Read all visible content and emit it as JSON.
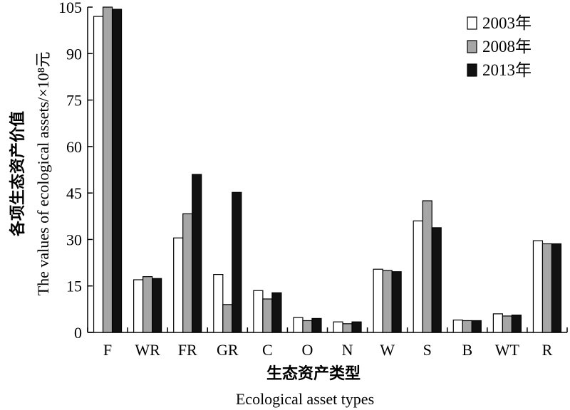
{
  "chart_data": {
    "type": "bar",
    "categories": [
      "F",
      "WR",
      "FR",
      "GR",
      "C",
      "O",
      "N",
      "W",
      "S",
      "B",
      "WT",
      "R"
    ],
    "series": [
      {
        "name": "2003年",
        "color": "#ffffff",
        "values": [
          102,
          17,
          30.5,
          18.7,
          13.5,
          4.8,
          3.4,
          20.4,
          36,
          4,
          6,
          29.6
        ]
      },
      {
        "name": "2008年",
        "color": "#a6a6a6",
        "values": [
          105,
          18,
          38.3,
          9,
          10.8,
          3.8,
          2.8,
          20,
          42.5,
          3.8,
          5.3,
          28.6
        ]
      },
      {
        "name": "2013年",
        "color": "#111111",
        "values": [
          104.3,
          17.4,
          51,
          45.2,
          12.8,
          4.5,
          3.4,
          19.6,
          33.8,
          3.8,
          5.6,
          28.6
        ]
      }
    ],
    "ylim": [
      0,
      105
    ],
    "yticks": [
      "0",
      "15",
      "30",
      "45",
      "60",
      "75",
      "90",
      "105"
    ],
    "ylabel_cn": "各项生态资产价值",
    "ylabel_en": "The values of ecological assets/×10⁸元",
    "xlabel_cn": "生态资产类型",
    "xlabel_en": "Ecological asset types",
    "legend_position": "top-right",
    "grid": false
  }
}
